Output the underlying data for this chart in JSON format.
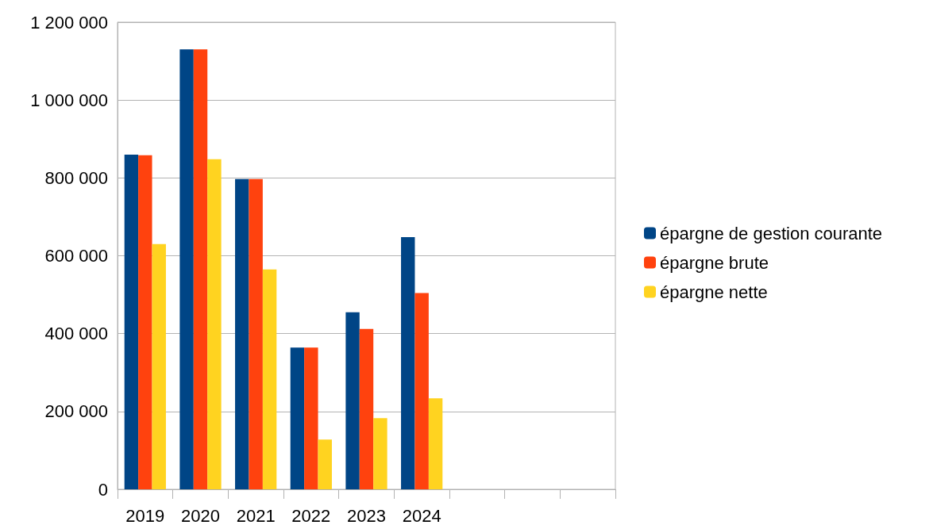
{
  "chart_data": {
    "type": "bar",
    "categories": [
      "2019",
      "2020",
      "2021",
      "2022",
      "2023",
      "2024",
      null,
      null,
      null
    ],
    "series": [
      {
        "name": "épargne de gestion courante",
        "color": "#004586",
        "values": [
          860000,
          1130000,
          797000,
          364000,
          455000,
          648000,
          null,
          null,
          null
        ]
      },
      {
        "name": "épargne brute",
        "color": "#ff420e",
        "values": [
          858000,
          1130000,
          797000,
          364000,
          412000,
          504000,
          null,
          null,
          null
        ]
      },
      {
        "name": "épargne nette",
        "color": "#ffd320",
        "values": [
          630000,
          848000,
          565000,
          128000,
          183000,
          234000,
          null,
          null,
          null
        ]
      }
    ],
    "ylim": [
      0,
      1200000
    ],
    "yticks": [
      0,
      {
        "value": 200000,
        "label": "200 000"
      },
      {
        "value": 400000,
        "label": "400 000"
      },
      {
        "value": 600000,
        "label": "600 000"
      },
      {
        "value": 800000,
        "label": "800 000"
      },
      {
        "value": 1000000,
        "label": "1 000 000"
      },
      {
        "value": 1200000,
        "label": "1 200 000"
      }
    ],
    "grid": "y",
    "legend": "right"
  }
}
